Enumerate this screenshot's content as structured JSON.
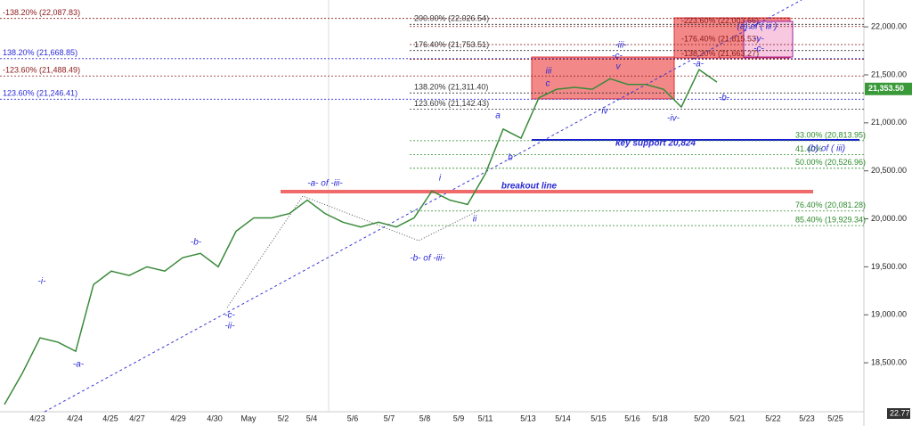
{
  "chart_data": {
    "type": "line",
    "series": [
      {
        "name": "price",
        "color": "#3a8a3a",
        "values": [
          18065,
          18390,
          18760,
          18715,
          18620,
          19315,
          19455,
          19410,
          19500,
          19455,
          19595,
          19640,
          19500,
          19870,
          20010,
          20010,
          20055,
          20195,
          20055,
          19965,
          19915,
          19965,
          19915,
          20010,
          20290,
          20195,
          20150,
          20470,
          20935,
          20840,
          21260,
          21350,
          21370,
          21350,
          21460,
          21400,
          21400,
          21350,
          21165,
          21555,
          21425
        ]
      }
    ],
    "x_labels": [
      "4/23",
      "4/24",
      "4/25",
      "4/27",
      "4/29",
      "4/30",
      "May",
      "5/2",
      "5/4",
      "5/6",
      "5/7",
      "5/8",
      "5/9",
      "5/11",
      "5/13",
      "5/14",
      "5/15",
      "5/16",
      "5/18",
      "5/20",
      "5/21",
      "5/22",
      "5/23",
      "5/25"
    ],
    "ylim": [
      17990,
      22280
    ],
    "yticks": [
      {
        "value": 18500,
        "label": "18,500.00"
      },
      {
        "value": 19000,
        "label": "19,000.00"
      },
      {
        "value": 19500,
        "label": "19,500.00"
      },
      {
        "value": 20000,
        "label": "20,000.00"
      },
      {
        "value": 20500,
        "label": "20,500.00"
      },
      {
        "value": 21000,
        "label": "21,000.00"
      },
      {
        "value": 21500,
        "label": "21,500.00"
      },
      {
        "value": 22000,
        "label": "22,000.00"
      }
    ],
    "levels": [
      {
        "value": 22087.83,
        "label": "-138.20% (22,087.83)",
        "color": "#8b1a1a",
        "side": "left"
      },
      {
        "value": 22026.54,
        "label": "200.00% (22,026.54)",
        "color": "#333333",
        "side": "mid"
      },
      {
        "value": 22003.66,
        "label": "-223.60% (22,003.66)",
        "color": "#8b1a1a",
        "side": "right"
      },
      {
        "value": 21815.53,
        "label": "-176.40% (21,815.53)",
        "color": "#8b1a1a",
        "side": "right"
      },
      {
        "value": 21753.51,
        "label": "176.40% (21,753.51)",
        "color": "#333333",
        "side": "mid"
      },
      {
        "value": 21668.85,
        "label": "138.20% (21,668.85)",
        "color": "#2a2ad6",
        "side": "left"
      },
      {
        "value": 21663.27,
        "label": "-138.20% (21,663.27)",
        "color": "#8b1a1a",
        "side": "right"
      },
      {
        "value": 21488.49,
        "label": "-123.60% (21,488.49)",
        "color": "#8b1a1a",
        "side": "left"
      },
      {
        "value": 21311.4,
        "label": "138.20% (21,311.40)",
        "color": "#333333",
        "side": "mid"
      },
      {
        "value": 21246.41,
        "label": "123.60% (21,246.41)",
        "color": "#2a2ad6",
        "side": "left"
      },
      {
        "value": 21142.43,
        "label": "123.60% (21,142.43)",
        "color": "#333333",
        "side": "mid"
      },
      {
        "value": 20813.95,
        "label": "33.00% (20,813.95)",
        "color": "#2e8b2e",
        "side": "right"
      },
      {
        "value": 20670,
        "label": "41.40%",
        "color": "#2e8b2e",
        "side": "right"
      },
      {
        "value": 20526.96,
        "label": "50.00% (20,526.96)",
        "color": "#2e8b2e",
        "side": "right"
      },
      {
        "value": 20081.28,
        "label": "76.40% (20,081.28)",
        "color": "#2e8b2e",
        "side": "right"
      },
      {
        "value": 19929.34,
        "label": "85.40% (19,929.34)",
        "color": "#2e8b2e",
        "side": "right"
      }
    ],
    "last_price": {
      "value": 21353.5,
      "label": "21,353.50"
    },
    "corner_value": "22.77",
    "annotations": [
      "-i-",
      "-a-",
      "-b-",
      "-c-",
      "-ii-",
      "-a- of -iii-",
      "-b- of -iii-",
      "i",
      "ii",
      "a",
      "b",
      "iii",
      "c",
      "iv",
      "-iii-",
      "-c-",
      "v",
      "-iv-",
      "-a-",
      "-b-",
      "(a) of ( iii )",
      "-v-",
      "-c-",
      "breakout line",
      "key support 20,824",
      "(b) of ( iii)"
    ]
  }
}
